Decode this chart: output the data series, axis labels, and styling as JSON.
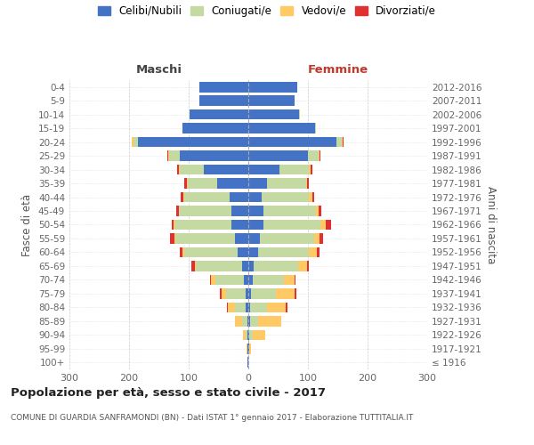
{
  "age_groups": [
    "100+",
    "95-99",
    "90-94",
    "85-89",
    "80-84",
    "75-79",
    "70-74",
    "65-69",
    "60-64",
    "55-59",
    "50-54",
    "45-49",
    "40-44",
    "35-39",
    "30-34",
    "25-29",
    "20-24",
    "15-19",
    "10-14",
    "5-9",
    "0-4"
  ],
  "birth_years": [
    "≤ 1916",
    "1917-1921",
    "1922-1926",
    "1927-1931",
    "1932-1936",
    "1937-1941",
    "1942-1946",
    "1947-1951",
    "1952-1956",
    "1957-1961",
    "1962-1966",
    "1967-1971",
    "1972-1976",
    "1977-1981",
    "1982-1986",
    "1987-1991",
    "1992-1996",
    "1997-2001",
    "2002-2006",
    "2007-2011",
    "2012-2016"
  ],
  "maschi_celibi": [
    1,
    1,
    1,
    2,
    4,
    5,
    7,
    10,
    18,
    22,
    28,
    28,
    32,
    52,
    75,
    115,
    185,
    110,
    98,
    82,
    82
  ],
  "maschi_coniugati": [
    0,
    1,
    3,
    8,
    18,
    32,
    48,
    78,
    90,
    100,
    95,
    88,
    75,
    50,
    40,
    18,
    8,
    1,
    1,
    0,
    0
  ],
  "maschi_vedovi": [
    0,
    1,
    5,
    12,
    13,
    8,
    7,
    2,
    2,
    2,
    2,
    1,
    2,
    1,
    1,
    1,
    2,
    0,
    0,
    0,
    0
  ],
  "maschi_divorziati": [
    0,
    0,
    0,
    0,
    1,
    3,
    2,
    5,
    5,
    7,
    4,
    4,
    4,
    4,
    4,
    2,
    1,
    0,
    0,
    0,
    0
  ],
  "femmine_nubili": [
    0,
    1,
    2,
    3,
    3,
    4,
    7,
    9,
    16,
    20,
    26,
    25,
    22,
    32,
    52,
    100,
    148,
    112,
    85,
    78,
    82
  ],
  "femmine_coniugate": [
    0,
    1,
    5,
    14,
    28,
    42,
    52,
    75,
    85,
    90,
    95,
    88,
    80,
    65,
    50,
    18,
    8,
    2,
    1,
    0,
    0
  ],
  "femmine_vedove": [
    0,
    2,
    22,
    38,
    32,
    32,
    18,
    14,
    14,
    9,
    9,
    5,
    5,
    2,
    2,
    1,
    2,
    0,
    0,
    0,
    0
  ],
  "femmine_divorziate": [
    0,
    0,
    0,
    0,
    2,
    2,
    2,
    3,
    5,
    6,
    9,
    5,
    4,
    3,
    3,
    2,
    2,
    0,
    0,
    0,
    0
  ],
  "color_celibi": "#4472c4",
  "color_coniugati": "#c5d9a3",
  "color_vedovi": "#ffc966",
  "color_divorziati": "#e03030",
  "legend_labels": [
    "Celibi/Nubili",
    "Coniugati/e",
    "Vedovi/e",
    "Divorziati/e"
  ],
  "title": "Popolazione per età, sesso e stato civile - 2017",
  "subtitle": "COMUNE DI GUARDIA SANFRAMONDI (BN) - Dati ISTAT 1° gennaio 2017 - Elaborazione TUTTITALIA.IT",
  "ylabel_left": "Fasce di età",
  "ylabel_right": "Anni di nascita",
  "header_maschi": "Maschi",
  "header_femmine": "Femmine",
  "xlim": 300,
  "bg_color": "#ffffff",
  "grid_color": "#cccccc"
}
